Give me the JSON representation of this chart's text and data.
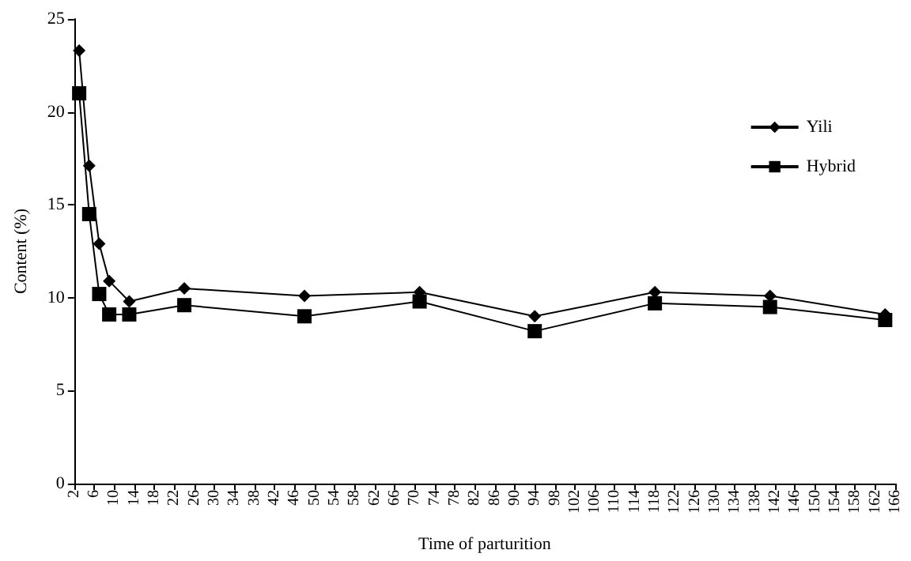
{
  "chart_data": {
    "type": "line",
    "xlabel": "Time of parturition",
    "ylabel": "Content (%)",
    "xlim": [
      2,
      166
    ],
    "xticks": [
      2,
      6,
      10,
      14,
      18,
      22,
      26,
      30,
      34,
      38,
      42,
      46,
      50,
      54,
      58,
      62,
      66,
      70,
      74,
      78,
      82,
      86,
      90,
      94,
      98,
      102,
      106,
      110,
      114,
      118,
      122,
      126,
      130,
      134,
      138,
      142,
      146,
      150,
      154,
      158,
      162,
      166
    ],
    "ylim": [
      0,
      25
    ],
    "yticks": [
      0,
      5,
      10,
      15,
      20,
      25
    ],
    "grid": false,
    "legend": "top right",
    "series": [
      {
        "name": "Yili",
        "color": "#000000",
        "marker": "diamond",
        "x": [
          3,
          5,
          7,
          9,
          13,
          24,
          48,
          71,
          94,
          118,
          141,
          164
        ],
        "values": [
          23.3,
          17.1,
          12.9,
          10.9,
          9.8,
          10.5,
          10.1,
          10.3,
          9.0,
          10.3,
          10.1,
          9.1
        ]
      },
      {
        "name": "Hybrid",
        "color": "#000000",
        "marker": "square",
        "x": [
          3,
          5,
          7,
          9,
          13,
          24,
          48,
          71,
          94,
          118,
          141,
          164
        ],
        "values": [
          21.0,
          14.5,
          10.2,
          9.1,
          9.1,
          9.6,
          9.0,
          9.8,
          8.2,
          9.7,
          9.5,
          8.8
        ]
      }
    ]
  }
}
